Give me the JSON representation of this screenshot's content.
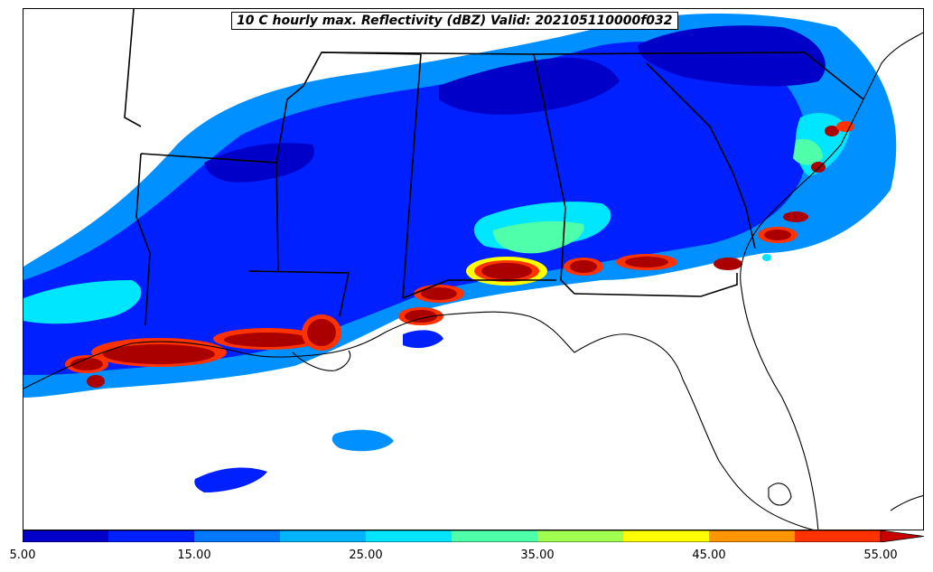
{
  "title": "10 C hourly max. Reflectivity (dBZ) Valid: 202105110000f032",
  "colorbar": {
    "ticks": [
      "5.00",
      "15.00",
      "25.00",
      "35.00",
      "45.00",
      "55.00"
    ],
    "bins": [
      5,
      10,
      15,
      20,
      25,
      30,
      35,
      40,
      45,
      50,
      55
    ],
    "colors": [
      "#0000c8",
      "#0020ff",
      "#0078ff",
      "#00b4ff",
      "#00e6ff",
      "#50ffaa",
      "#a0ff50",
      "#ffff00",
      "#ff9600",
      "#ff3200",
      "#c80000"
    ],
    "extend": "max"
  },
  "map": {
    "fill_colors": {
      "light_blue": "#0090ff",
      "blue": "#0020ff",
      "navy": "#0000c8",
      "cyan": "#00e6ff",
      "green": "#50ffaa",
      "yellow": "#ffff00",
      "orange": "#ff9600",
      "red": "#ff3200",
      "darkred": "#aa0000"
    },
    "features": [
      "state-borders",
      "coastline",
      "storm-cells"
    ]
  }
}
